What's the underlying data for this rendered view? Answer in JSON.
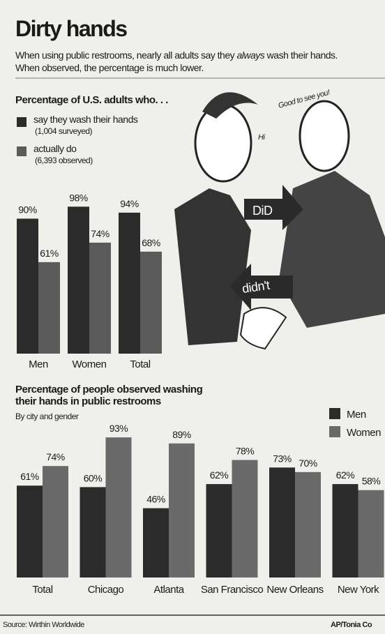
{
  "header": {
    "title": "Dirty hands",
    "subtitle": [
      "When using public restrooms, nearly all adults say they ",
      "always",
      " wash their hands.",
      "When observed, the percentage is much lower."
    ]
  },
  "chart_data": [
    {
      "type": "bar",
      "title": [
        "Percentage of U.S. adults who. . ."
      ],
      "categories": [
        "Men",
        "Women",
        "Total"
      ],
      "series": [
        {
          "name": "say they wash their hands",
          "note": "(1,004 surveyed)",
          "color": "#2b2b2b",
          "values": [
            90,
            98,
            94
          ],
          "value_labels": [
            "90%",
            "98%",
            "94%"
          ]
        },
        {
          "name": "actually do",
          "note": "(6,393 observed)",
          "color": "#5a5a5a",
          "values": [
            61,
            74,
            68
          ],
          "value_labels": [
            "61%",
            "74%",
            "68%"
          ]
        }
      ],
      "ylim": [
        0,
        100
      ]
    },
    {
      "type": "bar",
      "title": [
        "Percentage of people observed washing",
        "their hands in public restrooms"
      ],
      "subtitle": "By city and gender",
      "categories": [
        "Total",
        "Chicago",
        "Atlanta",
        "San Francisco",
        "New Orleans",
        "New York"
      ],
      "series": [
        {
          "name": "Men",
          "color": "#2b2b2b",
          "values": [
            61,
            60,
            46,
            62,
            73,
            62
          ],
          "value_labels": [
            "61%",
            "60%",
            "46%",
            "62%",
            "73%",
            "62%"
          ]
        },
        {
          "name": "Women",
          "color": "#6a6a6a",
          "values": [
            74,
            93,
            89,
            78,
            70,
            58
          ],
          "value_labels": [
            "74%",
            "93%",
            "89%",
            "78%",
            "70%",
            "58%"
          ]
        }
      ],
      "ylim": [
        0,
        100
      ]
    }
  ],
  "illustration": {
    "labels": [
      "DiD",
      "didn't",
      "Good to see you!",
      "Hi"
    ]
  },
  "footer": {
    "source": "Source: Wirthin Worldwide",
    "credit": "AP/Tonia Co"
  }
}
